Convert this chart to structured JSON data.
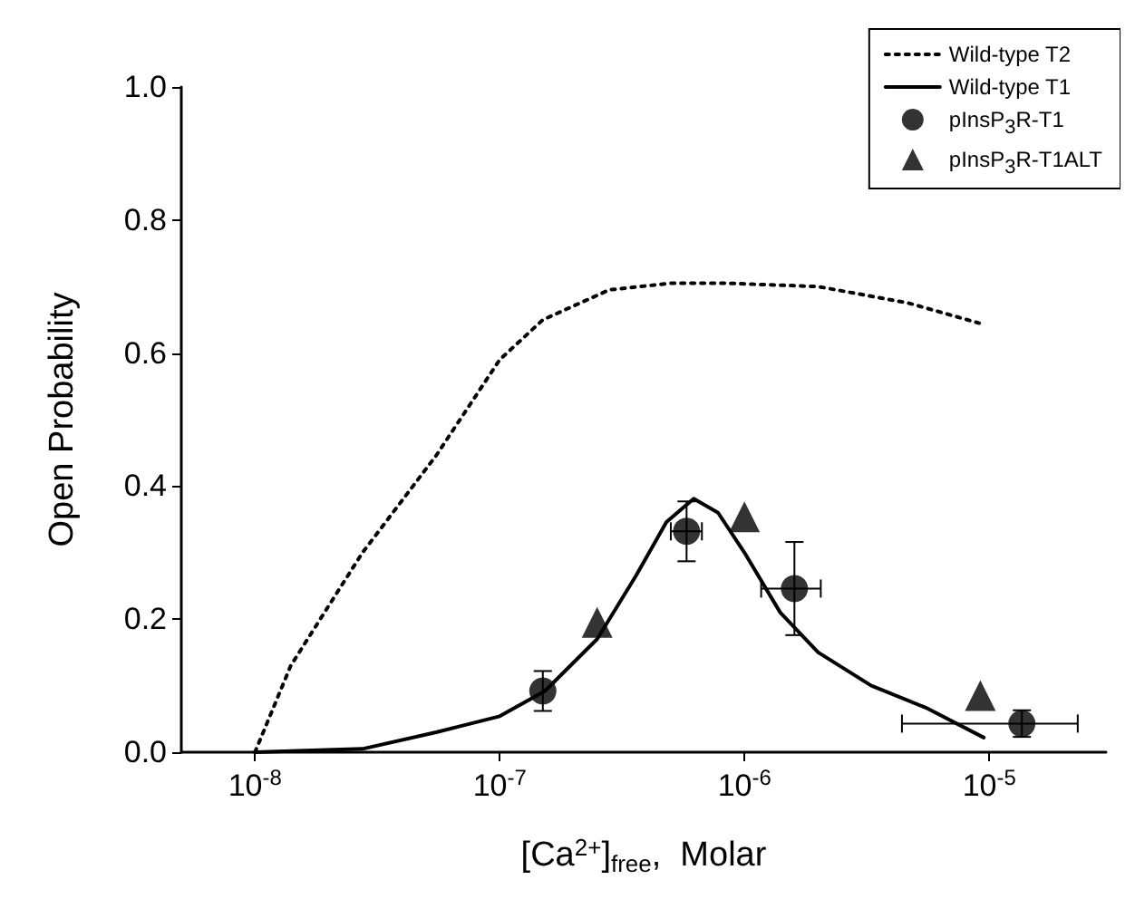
{
  "chart_data": {
    "type": "line",
    "xlabel": "[Ca$^{2+}$]$_{free}$,  Molar",
    "ylabel": "Open Probability",
    "log": "x",
    "xlim": [
      5e-09,
      3e-05
    ],
    "xticks": [
      {
        "value": 1e-08,
        "label": "10$^{-8}$"
      },
      {
        "value": 1e-07,
        "label": "10$^{-7}$"
      },
      {
        "value": 1e-06,
        "label": "10$^{-6}$"
      },
      {
        "value": 1e-05,
        "label": "10$^{-5}$"
      }
    ],
    "ylim": [
      0,
      1
    ],
    "yticks": [
      {
        "value": 0,
        "label": "0.0"
      },
      {
        "value": 0.2,
        "label": "0.2"
      },
      {
        "value": 0.4,
        "label": "0.4"
      },
      {
        "value": 0.6,
        "label": "0.6"
      },
      {
        "value": 0.8,
        "label": "0.8"
      },
      {
        "value": 1,
        "label": "1.0"
      }
    ],
    "grid": false,
    "legend": "top right",
    "series": [
      {
        "name": "Wild-type T2",
        "color": "#000000",
        "line_style": "dotted",
        "marker": "none",
        "x": [
          1e-08,
          1.4e-08,
          2e-08,
          2.75e-08,
          5.5e-08,
          1e-07,
          1.5e-07,
          2.8e-07,
          5e-07,
          8.5e-07,
          2e-06,
          4.7e-06,
          9.1e-06
        ],
        "values": [
          0,
          0.13,
          0.22,
          0.3,
          0.446,
          0.59,
          0.65,
          0.695,
          0.705,
          0.705,
          0.7,
          0.675,
          0.645
        ]
      },
      {
        "name": "Wild-type T1",
        "color": "#000000",
        "line_style": "solid",
        "marker": "none",
        "x": [
          1e-08,
          2.75e-08,
          5.5e-08,
          1e-07,
          1.53e-07,
          2.5e-07,
          3.6e-07,
          4.8e-07,
          6.2e-07,
          7.8e-07,
          1e-06,
          1.4e-06,
          2e-06,
          3.3e-06,
          5.5e-06,
          9.5e-06
        ],
        "values": [
          0,
          0.005,
          0.03,
          0.054,
          0.092,
          0.17,
          0.265,
          0.346,
          0.381,
          0.36,
          0.3,
          0.21,
          0.15,
          0.1,
          0.067,
          0.022
        ]
      },
      {
        "name": "pInsP$_{3}$R-T1",
        "type": "scatter",
        "color": "#000000",
        "marker": "circle",
        "x": [
          1.5e-07,
          5.8e-07,
          1.6e-06,
          1.36e-05
        ],
        "values": [
          0.092,
          0.332,
          0.246,
          0.043
        ],
        "errors": [
          0.03,
          0.045,
          0.07,
          0.02
        ],
        "xerrors": [
          null,
          [
            5e-07,
            6.7e-07
          ],
          [
            1.17e-06,
            2.05e-06
          ],
          [
            4.4e-06,
            2.3e-05
          ]
        ]
      },
      {
        "name": "pInsP$_{3}$R-T1ALT",
        "type": "scatter",
        "color": "#000000",
        "marker": "triangle",
        "x": [
          2.5e-07,
          1e-06,
          9.2e-06
        ],
        "values": [
          0.195,
          0.354,
          0.085
        ]
      }
    ]
  }
}
